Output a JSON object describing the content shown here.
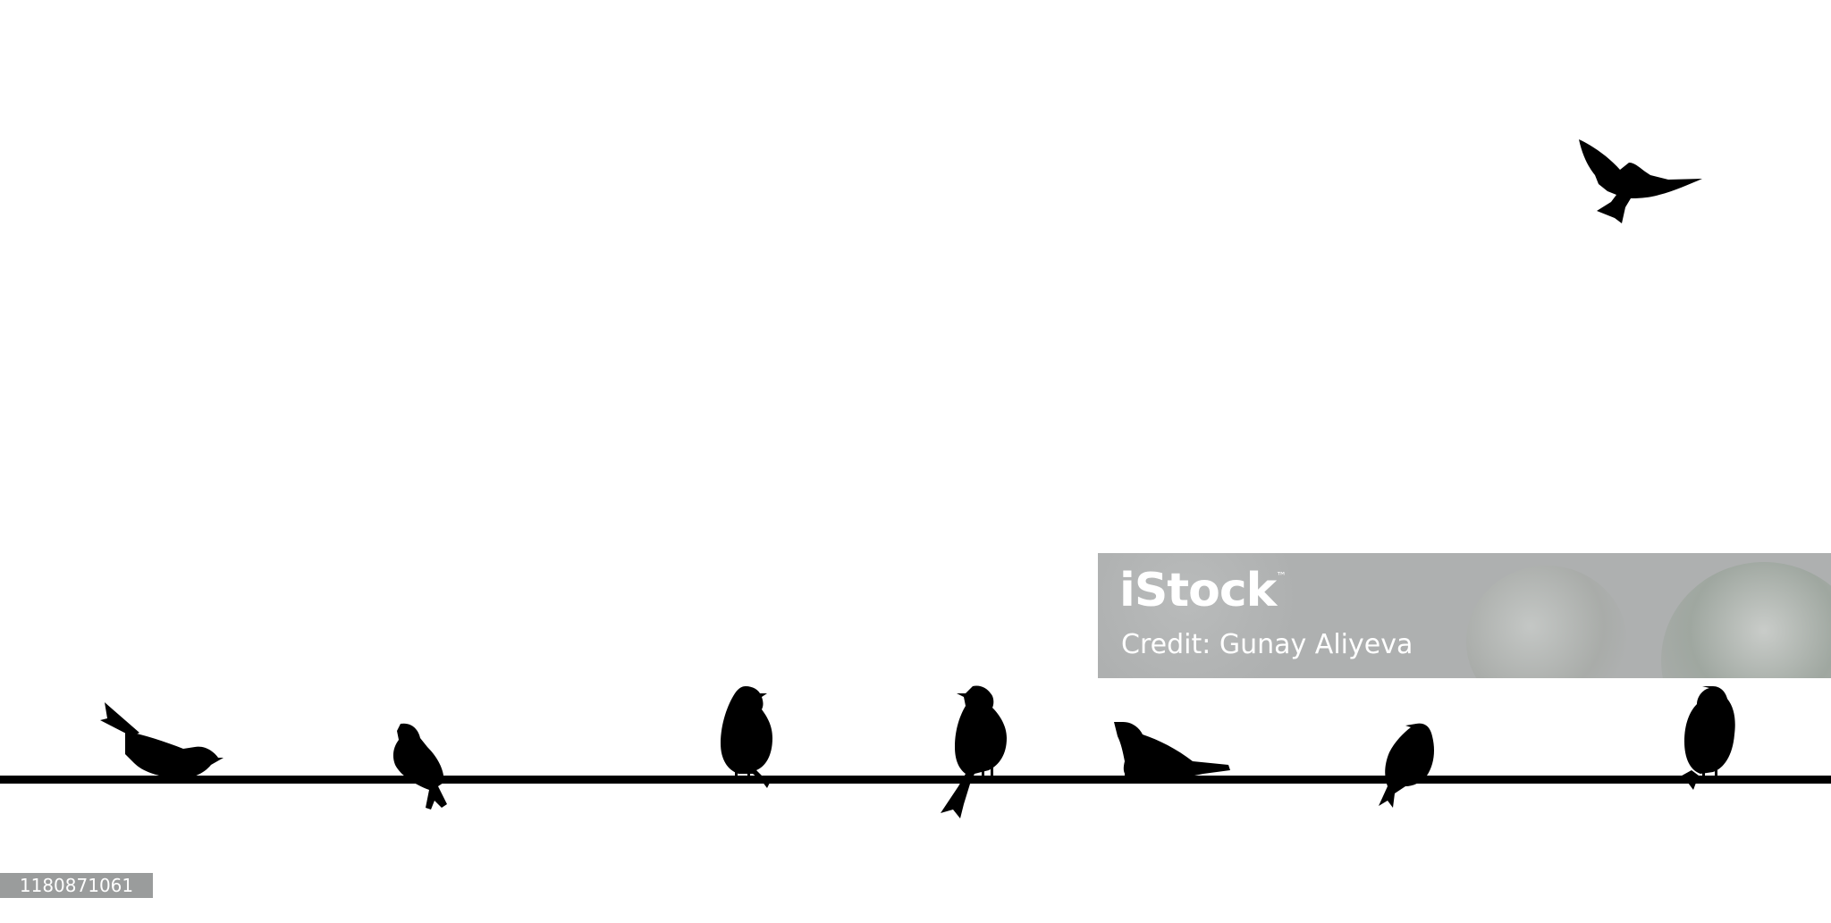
{
  "image": {
    "background_color": "#ffffff",
    "silhouette_color": "#000000"
  },
  "watermark": {
    "brand": "iStock",
    "trademark": "™",
    "credit": "Credit: Gunay Aliyeva",
    "background_color": "#aeb0b0"
  },
  "stock_id": "1180871061"
}
